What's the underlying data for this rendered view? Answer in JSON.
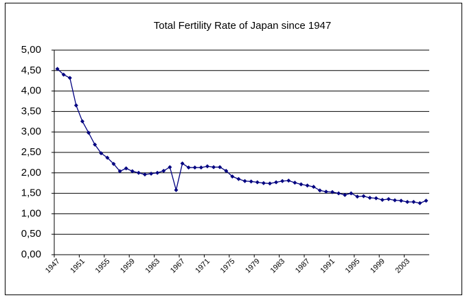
{
  "chart_data": {
    "type": "line",
    "title": "Total Fertility Rate of Japan since 1947",
    "categories": [
      "1947",
      null,
      null,
      null,
      "1951",
      null,
      null,
      null,
      "1955",
      null,
      null,
      null,
      "1959",
      null,
      null,
      null,
      "1963",
      null,
      null,
      null,
      "1967",
      null,
      null,
      null,
      "1971",
      null,
      null,
      null,
      "1975",
      null,
      null,
      null,
      "1979",
      null,
      null,
      null,
      "1983",
      null,
      null,
      null,
      "1987",
      null,
      null,
      null,
      "1991",
      null,
      null,
      null,
      "1995",
      null,
      null,
      null,
      "1999",
      null,
      null,
      null,
      "2003",
      null,
      null,
      null
    ],
    "series": [
      {
        "name": "Total Fertility Rate",
        "color": "#000080",
        "values": [
          4.54,
          4.4,
          4.32,
          3.65,
          3.26,
          2.98,
          2.69,
          2.48,
          2.37,
          2.22,
          2.04,
          2.11,
          2.04,
          2.0,
          1.96,
          1.98,
          2.0,
          2.05,
          2.14,
          1.58,
          2.23,
          2.13,
          2.13,
          2.13,
          2.16,
          2.14,
          2.14,
          2.05,
          1.91,
          1.85,
          1.8,
          1.79,
          1.77,
          1.75,
          1.74,
          1.77,
          1.8,
          1.81,
          1.76,
          1.72,
          1.69,
          1.66,
          1.57,
          1.54,
          1.53,
          1.5,
          1.46,
          1.5,
          1.42,
          1.43,
          1.39,
          1.38,
          1.34,
          1.36,
          1.33,
          1.32,
          1.29,
          1.29,
          1.26,
          1.32
        ]
      }
    ],
    "ylim": [
      0,
      5
    ],
    "yticks": [
      {
        "value": 0,
        "label": "0,00"
      },
      {
        "value": 0.5,
        "label": "0,50"
      },
      {
        "value": 1,
        "label": "1,00"
      },
      {
        "value": 1.5,
        "label": "1,50"
      },
      {
        "value": 2,
        "label": "2,00"
      },
      {
        "value": 2.5,
        "label": "2,50"
      },
      {
        "value": 3,
        "label": "3,00"
      },
      {
        "value": 3.5,
        "label": "3,50"
      },
      {
        "value": 4,
        "label": "4,00"
      },
      {
        "value": 4.5,
        "label": "4,50"
      },
      {
        "value": 5,
        "label": "5,00"
      }
    ],
    "grid": true
  }
}
